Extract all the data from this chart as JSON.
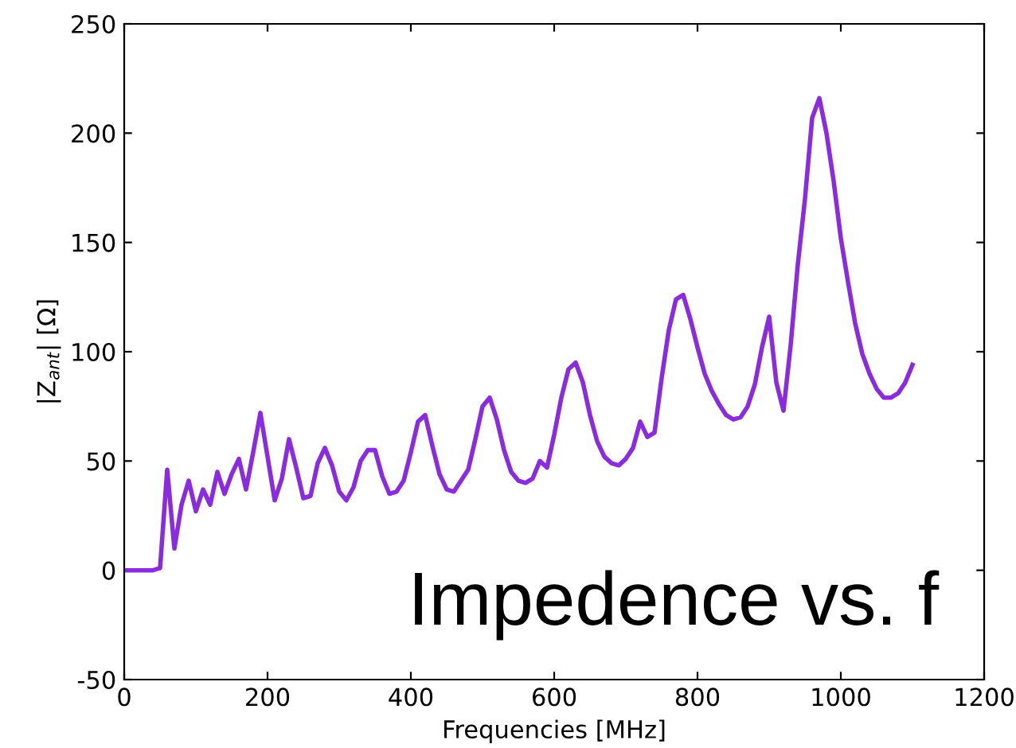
{
  "chart_data": {
    "type": "line",
    "xlabel": "Frequencies [MHz]",
    "ylabel": "|Z$_{ant}$| [Ω]",
    "annotations": [
      "Impedence vs. f"
    ],
    "x": [
      0,
      10,
      20,
      30,
      40,
      50,
      60,
      70,
      80,
      90,
      100,
      110,
      120,
      130,
      140,
      150,
      160,
      170,
      180,
      190,
      200,
      210,
      220,
      230,
      240,
      250,
      260,
      270,
      280,
      290,
      300,
      310,
      320,
      330,
      340,
      350,
      360,
      370,
      380,
      390,
      400,
      410,
      420,
      430,
      440,
      450,
      460,
      470,
      480,
      490,
      500,
      510,
      520,
      530,
      540,
      550,
      560,
      570,
      580,
      590,
      600,
      610,
      620,
      630,
      640,
      650,
      660,
      670,
      680,
      690,
      700,
      710,
      720,
      730,
      740,
      750,
      760,
      770,
      780,
      790,
      800,
      810,
      820,
      830,
      840,
      850,
      860,
      870,
      880,
      890,
      900,
      910,
      920,
      930,
      940,
      950,
      960,
      970,
      980,
      990,
      1000,
      1010,
      1020,
      1030,
      1040,
      1050,
      1060,
      1070,
      1080,
      1090,
      1100
    ],
    "series": [
      {
        "color": "#8a2be2",
        "values": [
          0,
          0,
          0,
          0,
          0,
          1,
          46,
          10,
          30,
          41,
          27,
          37,
          30,
          45,
          35,
          44,
          51,
          37,
          54,
          72,
          52,
          32,
          42,
          60,
          47,
          33,
          34,
          49,
          56,
          48,
          36,
          32,
          38,
          50,
          55,
          55,
          43,
          35,
          36,
          41,
          54,
          68,
          71,
          57,
          44,
          37,
          36,
          41,
          46,
          60,
          75,
          79,
          69,
          55,
          45,
          41,
          40,
          42,
          50,
          47,
          62,
          79,
          92,
          95,
          86,
          71,
          59,
          52,
          49,
          48,
          51,
          56,
          68,
          61,
          63,
          88,
          110,
          124,
          126,
          115,
          102,
          90,
          82,
          76,
          71,
          69,
          70,
          75,
          85,
          102,
          116,
          86,
          73,
          103,
          140,
          170,
          207,
          216,
          200,
          178,
          152,
          132,
          113,
          99,
          90,
          83,
          79,
          79,
          81,
          86,
          94
        ]
      }
    ],
    "xlim": [
      0,
      1200
    ],
    "xticks": [
      0,
      200,
      400,
      600,
      800,
      1000,
      1200
    ],
    "ylim": [
      -50,
      250
    ],
    "yticks": [
      -50,
      0,
      50,
      100,
      150,
      200,
      250
    ],
    "grid": false,
    "legend": false,
    "marker": "none",
    "line_style": "solid"
  }
}
